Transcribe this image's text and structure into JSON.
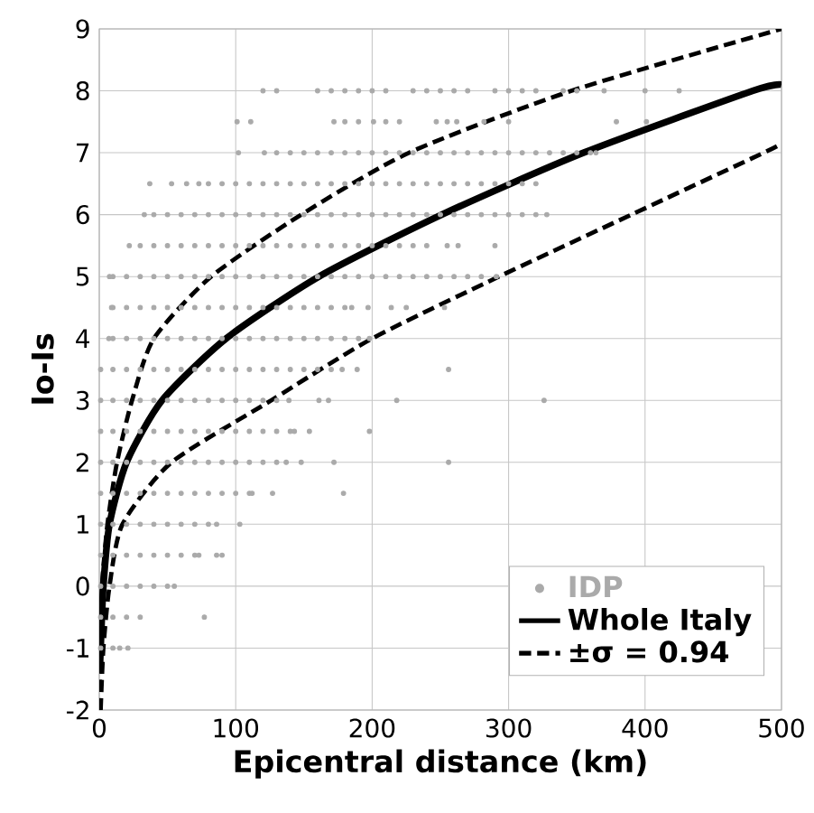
{
  "chart_data": {
    "type": "scatter",
    "xlabel": "Epicentral distance (km)",
    "ylabel": "Io-Is",
    "xlim": [
      0,
      500
    ],
    "xticks": [
      0,
      100,
      200,
      300,
      400,
      500
    ],
    "ylim": [
      -2,
      9
    ],
    "yticks": [
      -2,
      -1,
      0,
      1,
      2,
      3,
      4,
      5,
      6,
      7,
      8,
      9
    ],
    "grid": true,
    "legend": "bottom right",
    "series": [
      {
        "name": "IDP",
        "marker": "circle",
        "color": "#aaaaaa",
        "x": [
          120,
          130,
          160,
          170,
          180,
          190,
          200,
          210,
          230,
          240,
          250,
          260,
          270,
          290,
          300,
          310,
          320,
          340,
          350,
          370,
          400,
          425,
          101,
          111,
          172,
          180,
          190,
          201,
          210,
          220,
          247,
          255,
          262,
          282,
          300,
          379,
          401,
          102,
          121,
          130,
          140,
          150,
          160,
          170,
          180,
          190,
          200,
          210,
          220,
          230,
          240,
          250,
          260,
          270,
          280,
          290,
          300,
          310,
          320,
          330,
          340,
          350,
          360,
          364,
          37,
          53,
          64,
          73,
          80,
          90,
          100,
          110,
          120,
          130,
          140,
          150,
          160,
          170,
          180,
          190,
          200,
          210,
          220,
          230,
          240,
          250,
          260,
          270,
          280,
          290,
          300,
          310,
          320,
          33,
          40,
          50,
          60,
          70,
          80,
          90,
          100,
          110,
          120,
          130,
          140,
          150,
          160,
          170,
          180,
          190,
          200,
          210,
          220,
          230,
          240,
          250,
          260,
          270,
          280,
          290,
          300,
          310,
          320,
          328,
          22,
          30,
          40,
          50,
          60,
          70,
          80,
          90,
          100,
          110,
          120,
          130,
          140,
          150,
          160,
          170,
          180,
          190,
          200,
          210,
          220,
          230,
          240,
          255,
          263,
          290,
          7.5,
          10,
          20,
          30,
          40,
          50,
          60,
          70,
          80,
          90,
          100,
          110,
          120,
          130,
          140,
          150,
          160,
          170,
          180,
          190,
          200,
          210,
          220,
          230,
          240,
          250,
          260,
          270,
          280,
          291,
          9,
          10,
          20,
          30,
          40,
          50,
          60,
          70,
          80,
          90,
          100,
          110,
          120,
          130,
          140,
          150,
          160,
          170,
          180,
          185,
          197,
          214,
          225,
          253,
          7,
          10,
          20,
          30,
          40,
          50,
          60,
          70,
          80,
          90,
          100,
          110,
          120,
          130,
          140,
          150,
          160,
          170,
          180,
          190,
          198,
          1,
          10,
          20,
          30,
          40,
          50,
          60,
          70,
          80,
          90,
          100,
          110,
          120,
          130,
          140,
          150,
          160,
          170,
          178,
          189,
          256,
          1,
          10,
          20,
          30,
          40,
          50,
          60,
          70,
          80,
          90,
          100,
          110,
          120,
          130,
          139,
          161,
          168,
          218,
          326,
          1,
          10,
          20,
          30,
          40,
          50,
          60,
          70,
          80,
          90,
          100,
          110,
          120,
          130,
          140,
          143,
          154,
          198,
          1,
          10,
          20,
          30,
          40,
          50,
          60,
          70,
          80,
          90,
          100,
          110,
          120,
          130,
          137,
          148,
          172,
          256,
          1,
          10,
          20,
          30,
          40,
          50,
          60,
          70,
          80,
          90,
          100,
          110,
          112,
          127,
          179,
          1,
          10,
          20,
          30,
          40,
          50,
          60,
          70,
          80,
          86,
          103,
          1,
          10,
          20,
          30,
          40,
          50,
          60,
          70,
          73,
          86,
          90,
          1,
          10,
          20,
          30,
          40,
          50,
          55,
          1,
          10,
          20,
          30,
          77,
          1,
          10,
          15,
          21
        ],
        "values": [
          8,
          8,
          8,
          8,
          8,
          8,
          8,
          8,
          8,
          8,
          8,
          8,
          8,
          8,
          8,
          8,
          8,
          8,
          8,
          8,
          8,
          8,
          7.5,
          7.5,
          7.5,
          7.5,
          7.5,
          7.5,
          7.5,
          7.5,
          7.5,
          7.5,
          7.5,
          7.5,
          7.5,
          7.5,
          7.5,
          7,
          7,
          7,
          7,
          7,
          7,
          7,
          7,
          7,
          7,
          7,
          7,
          7,
          7,
          7,
          7,
          7,
          7,
          7,
          7,
          7,
          7,
          7,
          7,
          7,
          7,
          7,
          6.5,
          6.5,
          6.5,
          6.5,
          6.5,
          6.5,
          6.5,
          6.5,
          6.5,
          6.5,
          6.5,
          6.5,
          6.5,
          6.5,
          6.5,
          6.5,
          6.5,
          6.5,
          6.5,
          6.5,
          6.5,
          6.5,
          6.5,
          6.5,
          6.5,
          6.5,
          6.5,
          6.5,
          6.5,
          6,
          6,
          6,
          6,
          6,
          6,
          6,
          6,
          6,
          6,
          6,
          6,
          6,
          6,
          6,
          6,
          6,
          6,
          6,
          6,
          6,
          6,
          6,
          6,
          6,
          6,
          6,
          6,
          6,
          6,
          6,
          5.5,
          5.5,
          5.5,
          5.5,
          5.5,
          5.5,
          5.5,
          5.5,
          5.5,
          5.5,
          5.5,
          5.5,
          5.5,
          5.5,
          5.5,
          5.5,
          5.5,
          5.5,
          5.5,
          5.5,
          5.5,
          5.5,
          5.5,
          5.5,
          5.5,
          5.5,
          5,
          5,
          5,
          5,
          5,
          5,
          5,
          5,
          5,
          5,
          5,
          5,
          5,
          5,
          5,
          5,
          5,
          5,
          5,
          5,
          5,
          5,
          5,
          5,
          5,
          5,
          5,
          5,
          5,
          5,
          4.5,
          4.5,
          4.5,
          4.5,
          4.5,
          4.5,
          4.5,
          4.5,
          4.5,
          4.5,
          4.5,
          4.5,
          4.5,
          4.5,
          4.5,
          4.5,
          4.5,
          4.5,
          4.5,
          4.5,
          4.5,
          4.5,
          4.5,
          4.5,
          4,
          4,
          4,
          4,
          4,
          4,
          4,
          4,
          4,
          4,
          4,
          4,
          4,
          4,
          4,
          4,
          4,
          4,
          4,
          4,
          4,
          3.5,
          3.5,
          3.5,
          3.5,
          3.5,
          3.5,
          3.5,
          3.5,
          3.5,
          3.5,
          3.5,
          3.5,
          3.5,
          3.5,
          3.5,
          3.5,
          3.5,
          3.5,
          3.5,
          3.5,
          3.5,
          3,
          3,
          3,
          3,
          3,
          3,
          3,
          3,
          3,
          3,
          3,
          3,
          3,
          3,
          3,
          3,
          3,
          3,
          3,
          2.5,
          2.5,
          2.5,
          2.5,
          2.5,
          2.5,
          2.5,
          2.5,
          2.5,
          2.5,
          2.5,
          2.5,
          2.5,
          2.5,
          2.5,
          2.5,
          2.5,
          2.5,
          2,
          2,
          2,
          2,
          2,
          2,
          2,
          2,
          2,
          2,
          2,
          2,
          2,
          2,
          2,
          2,
          2,
          2,
          1.5,
          1.5,
          1.5,
          1.5,
          1.5,
          1.5,
          1.5,
          1.5,
          1.5,
          1.5,
          1.5,
          1.5,
          1.5,
          1.5,
          1.5,
          1,
          1,
          1,
          1,
          1,
          1,
          1,
          1,
          1,
          1,
          1,
          0.5,
          0.5,
          0.5,
          0.5,
          0.5,
          0.5,
          0.5,
          0.5,
          0.5,
          0.5,
          0.5,
          0,
          0,
          0,
          0,
          0,
          0,
          0,
          -0.5,
          -0.5,
          -0.5,
          -0.5,
          -0.5,
          -1,
          -1,
          -1,
          -1
        ]
      },
      {
        "name": "Whole Italy",
        "type": "line",
        "line_style": "solid",
        "marker": "none",
        "color": "#000000",
        "x": [
          0.3,
          1,
          3,
          7.5,
          20,
          46,
          93,
          161,
          251,
          355,
          479,
          500
        ],
        "values": [
          -1.4,
          -1,
          0,
          1,
          2,
          3,
          4,
          5,
          6,
          7,
          8,
          8.1
        ]
      },
      {
        "name": "±σ = 0.94",
        "type": "line",
        "line_style": "dashed",
        "marker": "none",
        "color": "#000000",
        "x": [
          0.3,
          0.8,
          2,
          6,
          13,
          24,
          40,
          82,
          148,
          227,
          346,
          500
        ],
        "values": [
          -2,
          -1,
          0,
          1,
          2,
          3,
          4,
          5,
          6,
          7,
          8,
          9
        ]
      },
      {
        "type": "line",
        "line_style": "dashed",
        "marker": "none",
        "color": "#000000",
        "x": [
          1,
          3,
          7.5,
          17,
          53,
          126,
          200,
          293,
          390,
          487,
          500
        ],
        "values": [
          -2,
          -1,
          0,
          1,
          2,
          3,
          4,
          5,
          6,
          7,
          7.15
        ]
      }
    ]
  }
}
